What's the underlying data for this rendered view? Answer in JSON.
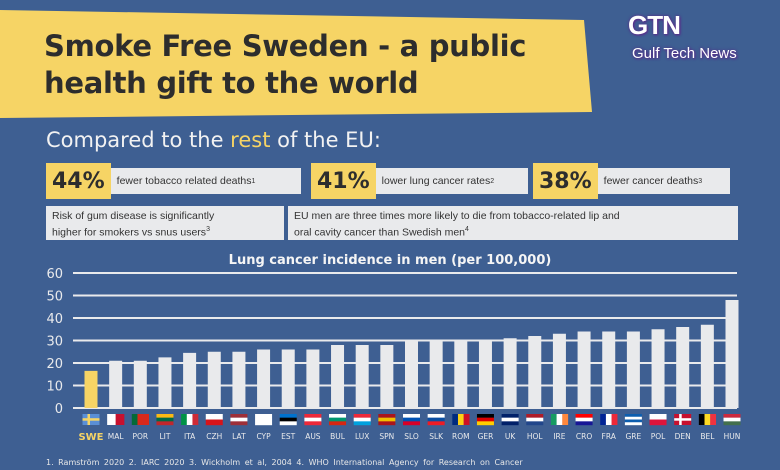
{
  "watermark": {
    "big": "GTN",
    "small": "Gulf Tech News"
  },
  "header": {
    "title_line1": "Smoke Free Sweden - a public",
    "title_line2": "health gift to the world"
  },
  "subtitle": {
    "before": "Compared to the ",
    "highlight": "rest",
    "after": " of the EU:"
  },
  "stats": [
    {
      "value": "44%",
      "text": "fewer tobacco related deaths",
      "ref": "1"
    },
    {
      "value": "41%",
      "text": "lower lung cancer rates",
      "ref": "2"
    },
    {
      "value": "38%",
      "text": "fewer cancer deaths",
      "ref": "3"
    }
  ],
  "notes": [
    {
      "line1": "Risk of gum disease is significantly",
      "line2": "higher for smokers vs snus users",
      "ref": "3"
    },
    {
      "line1": "EU men are three times more likely to die from tobacco-related lip and",
      "line2": "oral cavity cancer than Swedish men",
      "ref": "4"
    }
  ],
  "colors": {
    "background": "#3e5f92",
    "highlight": "#f6d465",
    "bar": "#e9eaec",
    "sweden_bar": "#f6d465"
  },
  "chart_data": {
    "type": "bar",
    "title": "Lung cancer incidence in men (per 100,000)",
    "categories": [
      "SWE",
      "MAL",
      "POR",
      "LIT",
      "ITA",
      "CZH",
      "LAT",
      "CYP",
      "EST",
      "AUS",
      "BUL",
      "LUX",
      "SPN",
      "SLO",
      "SLK",
      "ROM",
      "GER",
      "UK",
      "HOL",
      "IRE",
      "CRO",
      "FRA",
      "GRE",
      "POL",
      "DEN",
      "BEL",
      "HUN"
    ],
    "values": [
      16.5,
      21,
      21,
      22.5,
      24.5,
      25,
      25,
      26,
      26,
      26,
      28,
      28,
      28,
      30,
      30,
      30,
      30,
      31,
      32,
      33,
      34,
      34,
      34,
      35,
      36,
      37,
      48
    ],
    "highlighted_category": "SWE",
    "ylim": [
      0,
      60
    ],
    "yticks": [
      0,
      10,
      20,
      30,
      40,
      50,
      60
    ],
    "grid": true,
    "flags": [
      {
        "dir": "cross",
        "c": [
          "#5a8fd6",
          "#f6d465"
        ]
      },
      {
        "dir": "v",
        "c": [
          "#ffffff",
          "#c8102e"
        ]
      },
      {
        "dir": "v",
        "c": [
          "#046a38",
          "#da291c",
          "#da291c"
        ]
      },
      {
        "dir": "h",
        "c": [
          "#fdb913",
          "#006a44",
          "#c1272d"
        ]
      },
      {
        "dir": "v",
        "c": [
          "#009246",
          "#ffffff",
          "#ce2b37"
        ]
      },
      {
        "dir": "h",
        "c": [
          "#ffffff",
          "#d7141a"
        ]
      },
      {
        "dir": "h",
        "c": [
          "#9e3039",
          "#ffffff",
          "#9e3039"
        ]
      },
      {
        "dir": "h",
        "c": [
          "#ffffff",
          "#ffffff"
        ]
      },
      {
        "dir": "h",
        "c": [
          "#0072ce",
          "#000000",
          "#ffffff"
        ]
      },
      {
        "dir": "h",
        "c": [
          "#ed2939",
          "#ffffff",
          "#ed2939"
        ]
      },
      {
        "dir": "h",
        "c": [
          "#ffffff",
          "#00966e",
          "#d62612"
        ]
      },
      {
        "dir": "h",
        "c": [
          "#ed2939",
          "#ffffff",
          "#00a1de"
        ]
      },
      {
        "dir": "h",
        "c": [
          "#aa151b",
          "#f1bf00",
          "#aa151b"
        ]
      },
      {
        "dir": "h",
        "c": [
          "#ffffff",
          "#0052b4",
          "#d80027"
        ]
      },
      {
        "dir": "h",
        "c": [
          "#ffffff",
          "#0b4ea2",
          "#ee1c25"
        ]
      },
      {
        "dir": "v",
        "c": [
          "#002b7f",
          "#fcd116",
          "#ce1126"
        ]
      },
      {
        "dir": "h",
        "c": [
          "#000000",
          "#dd0000",
          "#ffce00"
        ]
      },
      {
        "dir": "h",
        "c": [
          "#012169",
          "#ffffff",
          "#012169"
        ]
      },
      {
        "dir": "h",
        "c": [
          "#ae1c28",
          "#ffffff",
          "#21468b"
        ]
      },
      {
        "dir": "v",
        "c": [
          "#169b62",
          "#ffffff",
          "#ff883e"
        ]
      },
      {
        "dir": "h",
        "c": [
          "#ff0000",
          "#ffffff",
          "#171796"
        ]
      },
      {
        "dir": "v",
        "c": [
          "#002395",
          "#ffffff",
          "#ed2939"
        ]
      },
      {
        "dir": "h",
        "c": [
          "#0d5eaf",
          "#ffffff",
          "#0d5eaf",
          "#ffffff"
        ]
      },
      {
        "dir": "h",
        "c": [
          "#ffffff",
          "#dc143c"
        ]
      },
      {
        "dir": "cross",
        "c": [
          "#c8102e",
          "#ffffff"
        ]
      },
      {
        "dir": "v",
        "c": [
          "#000000",
          "#fdda24",
          "#ef3340"
        ]
      },
      {
        "dir": "h",
        "c": [
          "#cd2a3e",
          "#ffffff",
          "#436f4d"
        ]
      }
    ]
  },
  "footnotes": "1. Ramström 2020   2. IARC 2020   3. Wickholm et al, 2004   4. WHO International Agency for Research on Cancer"
}
